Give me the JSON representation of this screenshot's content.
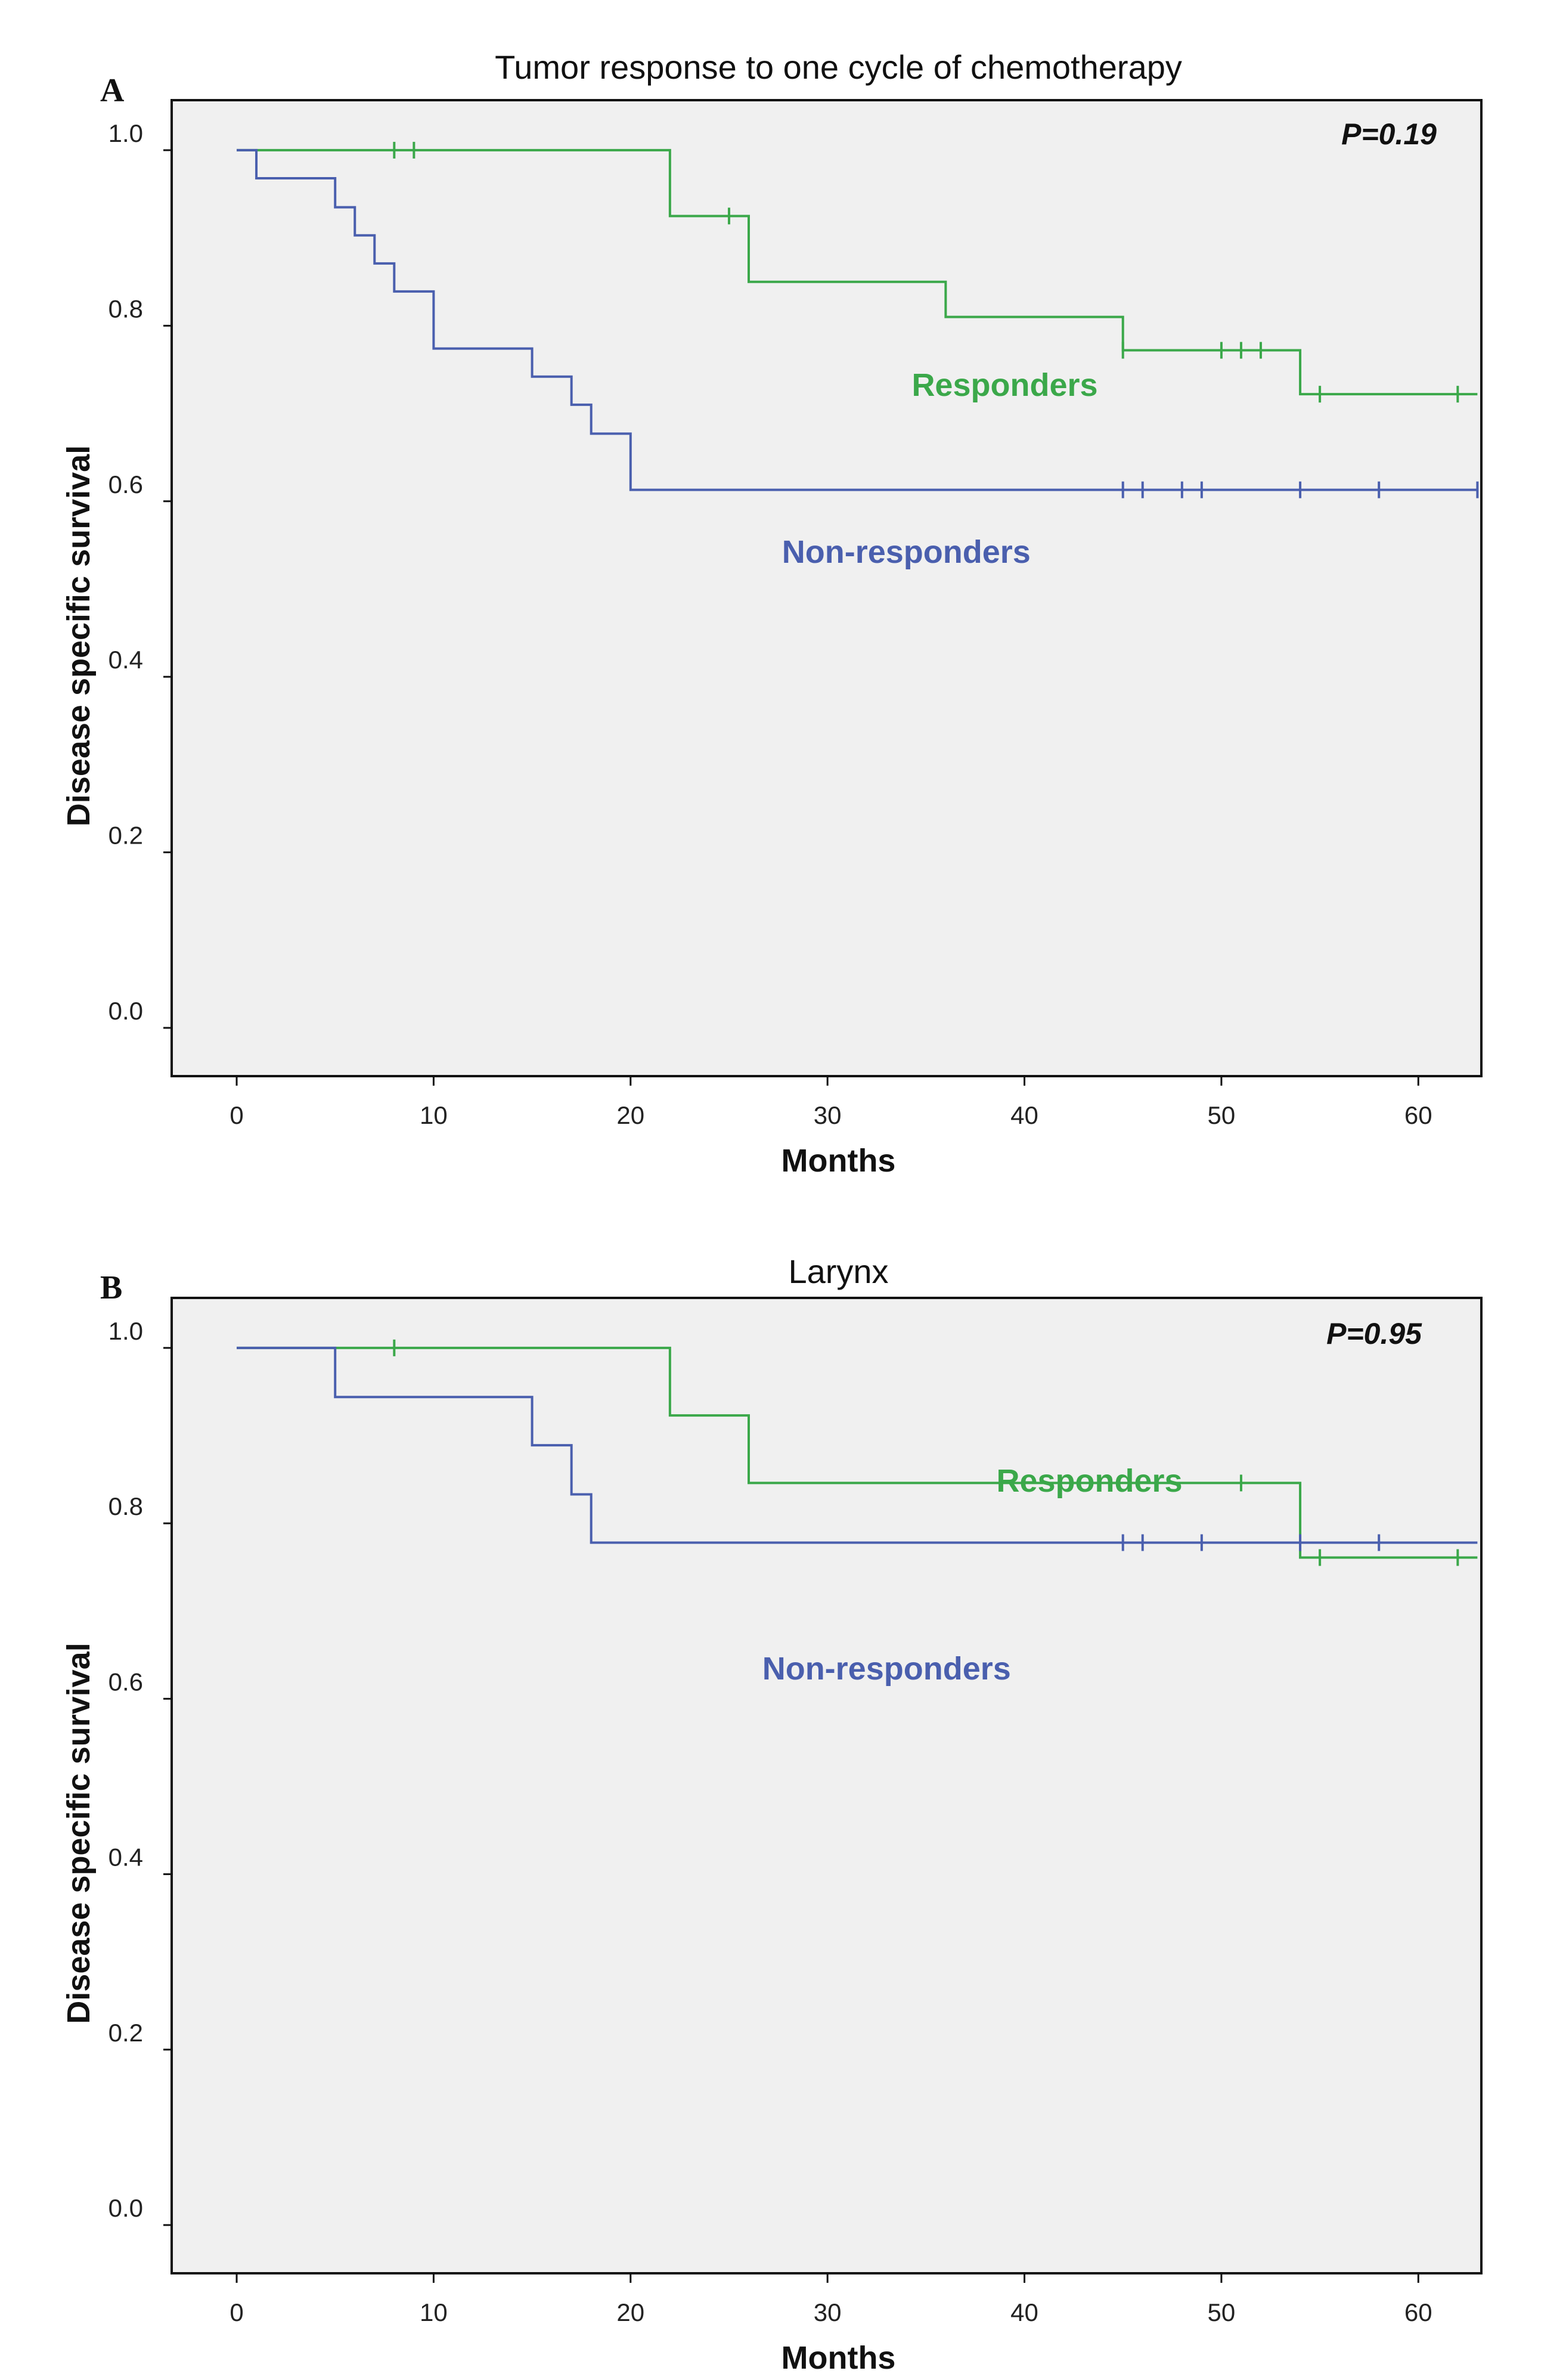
{
  "chart_data": [
    {
      "panel": "A",
      "type": "line",
      "title": "Tumor response to one cycle of chemotherapy",
      "xlabel": "Months",
      "ylabel": "Disease specific survival",
      "xlim": [
        -3.3,
        63.2
      ],
      "ylim": [
        -0.055,
        1.057
      ],
      "xticks": [
        "0",
        "10",
        "20",
        "30",
        "40",
        "50",
        "60"
      ],
      "yticks": [
        "0.0",
        "0.2",
        "0.4",
        "0.6",
        "0.8",
        "1.0"
      ],
      "p_value": "P=0.19",
      "grid": false,
      "series": [
        {
          "name": "Responders",
          "color": "#3ba84a",
          "label_pos": [
            39,
            0.72
          ],
          "steps": [
            [
              0,
              1.0
            ],
            [
              22,
              0.925
            ],
            [
              26,
              0.85
            ],
            [
              36,
              0.81
            ],
            [
              45,
              0.772
            ],
            [
              54,
              0.722
            ],
            [
              63,
              0.722
            ]
          ],
          "censored": [
            [
              8,
              1.0
            ],
            [
              9,
              1.0
            ],
            [
              25,
              0.925
            ],
            [
              45,
              0.772
            ],
            [
              50,
              0.772
            ],
            [
              51,
              0.772
            ],
            [
              52,
              0.772
            ],
            [
              55,
              0.722
            ],
            [
              62,
              0.722
            ]
          ]
        },
        {
          "name": "Non-responders",
          "color": "#4a5fae",
          "label_pos": [
            34,
            0.53
          ],
          "steps": [
            [
              0,
              1.0
            ],
            [
              1,
              0.968
            ],
            [
              5,
              0.935
            ],
            [
              6,
              0.903
            ],
            [
              7,
              0.871
            ],
            [
              8,
              0.839
            ],
            [
              10,
              0.774
            ],
            [
              15,
              0.742
            ],
            [
              17,
              0.71
            ],
            [
              18,
              0.677
            ],
            [
              20,
              0.613
            ],
            [
              63,
              0.613
            ]
          ],
          "censored": [
            [
              45,
              0.613
            ],
            [
              46,
              0.613
            ],
            [
              48,
              0.613
            ],
            [
              49,
              0.613
            ],
            [
              54,
              0.613
            ],
            [
              58,
              0.613
            ],
            [
              63,
              0.613
            ]
          ]
        }
      ]
    },
    {
      "panel": "B",
      "type": "line",
      "title": "Larynx",
      "xlabel": "Months",
      "ylabel": "Disease specific survival",
      "xlim": [
        -3.3,
        63.2
      ],
      "ylim": [
        -0.055,
        1.057
      ],
      "xticks": [
        "0",
        "10",
        "20",
        "30",
        "40",
        "50",
        "60"
      ],
      "yticks": [
        "0.0",
        "0.2",
        "0.4",
        "0.6",
        "0.8",
        "1.0"
      ],
      "p_value": "P=0.95",
      "grid": false,
      "series": [
        {
          "name": "Responders",
          "color": "#3ba84a",
          "label_pos": [
            43.3,
            0.836
          ],
          "steps": [
            [
              0,
              1.0
            ],
            [
              22,
              0.923
            ],
            [
              26,
              0.846
            ],
            [
              54,
              0.761
            ],
            [
              63,
              0.761
            ]
          ],
          "censored": [
            [
              8,
              1.0
            ],
            [
              51,
              0.846
            ],
            [
              55,
              0.761
            ],
            [
              62,
              0.761
            ]
          ]
        },
        {
          "name": "Non-responders",
          "color": "#4a5fae",
          "label_pos": [
            33,
            0.622
          ],
          "steps": [
            [
              0,
              1.0
            ],
            [
              5,
              0.944
            ],
            [
              15,
              0.889
            ],
            [
              17,
              0.833
            ],
            [
              18,
              0.778
            ],
            [
              63,
              0.778
            ]
          ],
          "censored": [
            [
              45,
              0.778
            ],
            [
              46,
              0.778
            ],
            [
              49,
              0.778
            ],
            [
              54,
              0.778
            ],
            [
              58,
              0.778
            ]
          ]
        }
      ]
    }
  ]
}
